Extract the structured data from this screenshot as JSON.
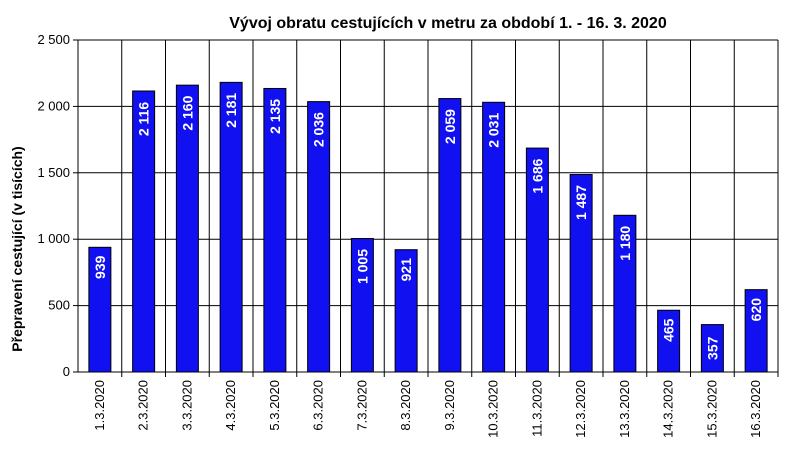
{
  "chart_data": {
    "type": "bar",
    "title": "Vývoj obratu cestujících v metru za období 1. - 16. 3. 2020",
    "xlabel": "",
    "ylabel": "Přepravení cestující (v tisících)",
    "ylim": [
      0,
      2500
    ],
    "yticks": [
      0,
      500,
      1000,
      1500,
      2000,
      2500
    ],
    "ytick_labels": [
      "0",
      "500",
      "1 000",
      "1 500",
      "2 000",
      "2 500"
    ],
    "grid": true,
    "bar_color": "#1010F0",
    "categories": [
      "1.3.2020",
      "2.3.2020",
      "3.3.2020",
      "4.3.2020",
      "5.3.2020",
      "6.3.2020",
      "7.3.2020",
      "8.3.2020",
      "9.3.2020",
      "10.3.2020",
      "11.3.2020",
      "12.3.2020",
      "13.3.2020",
      "14.3.2020",
      "15.3.2020",
      "16.3.2020"
    ],
    "values": [
      939,
      2116,
      2160,
      2181,
      2135,
      2036,
      1005,
      921,
      2059,
      2031,
      1686,
      1487,
      1180,
      465,
      357,
      620
    ],
    "data_labels": [
      "939",
      "2 116",
      "2 160",
      "2 181",
      "2 135",
      "2 036",
      "1 005",
      "921",
      "2 059",
      "2 031",
      "1 686",
      "1 487",
      "1 180",
      "465",
      "357",
      "620"
    ]
  }
}
